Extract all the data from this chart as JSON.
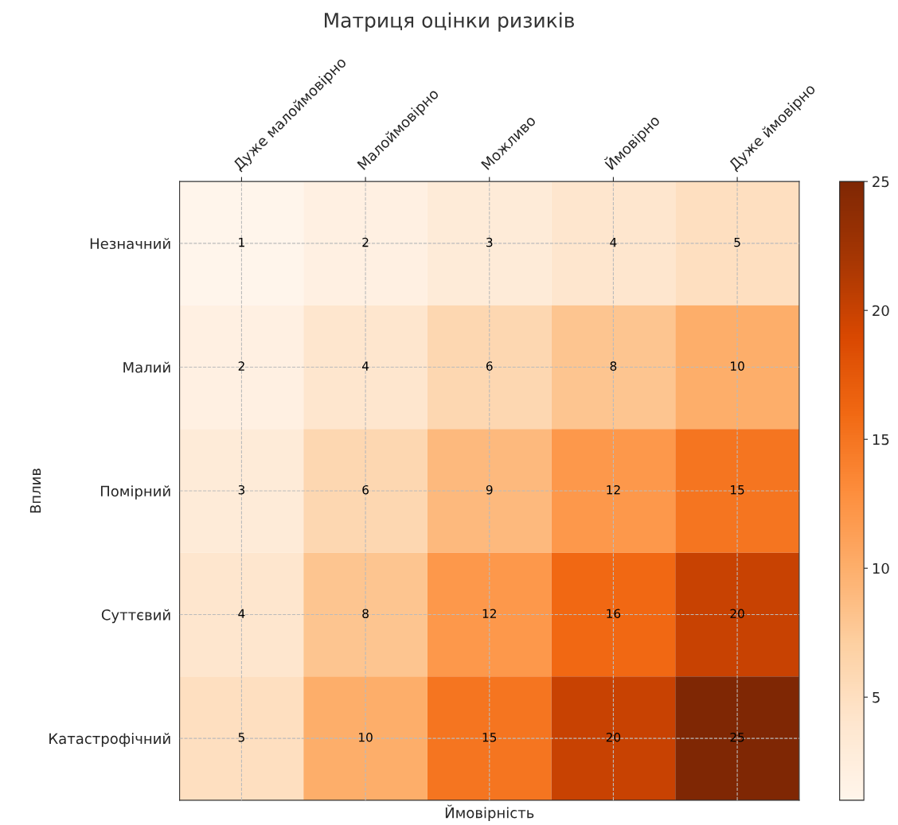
{
  "chart_data": {
    "type": "heatmap",
    "title": "Матриця оцінки ризиків",
    "xlabel": "Ймовірність",
    "ylabel": "Вплив",
    "categories": [
      "Дуже малоймовірно",
      "Малоймовірно",
      "Можливо",
      "Ймовірно",
      "Дуже ймовірно"
    ],
    "y_categories": [
      "Незначний",
      "Малий",
      "Помірний",
      "Суттєвий",
      "Катастрофічний"
    ],
    "cells": [
      [
        1,
        2,
        3,
        4,
        5
      ],
      [
        2,
        4,
        6,
        8,
        10
      ],
      [
        3,
        6,
        9,
        12,
        15
      ],
      [
        4,
        8,
        12,
        16,
        20
      ],
      [
        5,
        10,
        15,
        20,
        25
      ]
    ],
    "clim": [
      1,
      25
    ],
    "cticks": [
      5,
      10,
      15,
      20,
      25
    ],
    "data_labels": true,
    "grid": true
  }
}
